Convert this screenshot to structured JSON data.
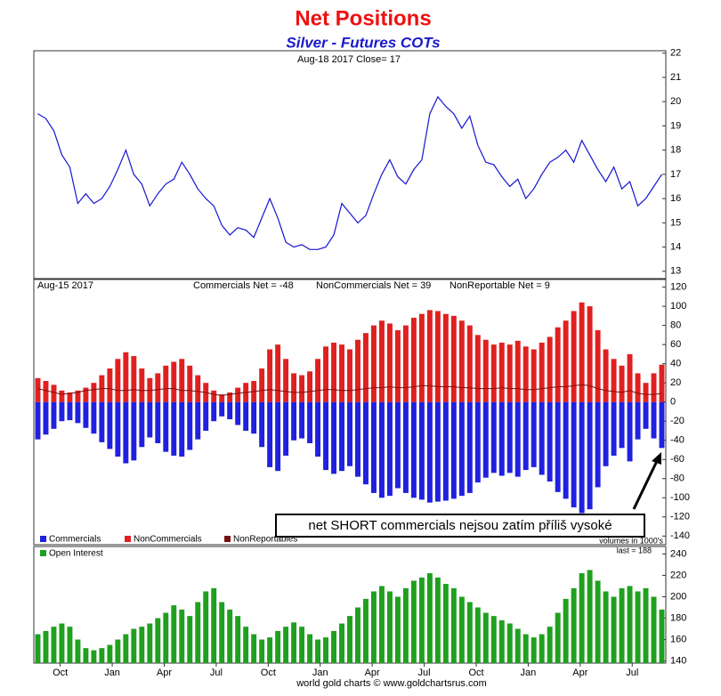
{
  "chart_data": [
    {
      "type": "line",
      "title": "Net Positions",
      "subtitle": "Silver - Futures COTs",
      "note": "Aug-18  2017   Close= 17",
      "xlim": [
        0,
        79
      ],
      "ylim": [
        12.7,
        22.1
      ],
      "yticks": [
        13,
        14,
        15,
        16,
        17,
        18,
        19,
        20,
        21,
        22
      ],
      "grid": false,
      "series": [
        {
          "name": "Silver",
          "color": "#1515d0",
          "values": [
            19.5,
            19.3,
            18.8,
            17.8,
            17.3,
            15.8,
            16.2,
            15.8,
            16.0,
            16.5,
            17.2,
            18.0,
            17.0,
            16.6,
            15.7,
            16.2,
            16.6,
            16.8,
            17.5,
            17.0,
            16.4,
            16.0,
            15.7,
            14.9,
            14.5,
            14.8,
            14.7,
            14.4,
            15.2,
            16.0,
            15.2,
            14.2,
            14.0,
            14.1,
            13.9,
            13.9,
            14.0,
            14.5,
            15.8,
            15.4,
            15.0,
            15.3,
            16.2,
            17.0,
            17.6,
            16.9,
            16.6,
            17.2,
            17.6,
            19.5,
            20.2,
            19.8,
            19.5,
            18.9,
            19.4,
            18.2,
            17.5,
            17.4,
            16.9,
            16.5,
            16.8,
            16.0,
            16.4,
            17.0,
            17.5,
            17.7,
            18.0,
            17.5,
            18.4,
            17.8,
            17.2,
            16.7,
            17.3,
            16.4,
            16.7,
            15.7,
            16.0,
            16.5,
            17.0
          ]
        }
      ]
    },
    {
      "type": "bar",
      "date": "Aug-15  2017",
      "readouts": [
        "Commercials Net = -48",
        "NonCommercials Net = 39",
        "NonReportable Net = 9"
      ],
      "annotation": "net SHORT commercials nejsou zatím příliš vysoké",
      "xlim": [
        0,
        79
      ],
      "ylim": [
        -149,
        128
      ],
      "yticks": [
        120,
        100,
        80,
        60,
        40,
        20,
        0,
        -20,
        -40,
        -60,
        -80,
        -100,
        -120,
        -140
      ],
      "grid": false,
      "series": [
        {
          "name": "Commercials",
          "color": "#2020e0",
          "style": "bar",
          "values": [
            -39,
            -34,
            -28,
            -20,
            -19,
            -22,
            -27,
            -33,
            -42,
            -49,
            -57,
            -64,
            -61,
            -47,
            -37,
            -43,
            -52,
            -56,
            -57,
            -50,
            -39,
            -30,
            -20,
            -15,
            -18,
            -24,
            -30,
            -33,
            -47,
            -68,
            -72,
            -56,
            -40,
            -38,
            -43,
            -57,
            -71,
            -75,
            -72,
            -67,
            -78,
            -86,
            -95,
            -100,
            -98,
            -90,
            -95,
            -100,
            -102,
            -105,
            -104,
            -103,
            -101,
            -98,
            -95,
            -84,
            -79,
            -74,
            -77,
            -74,
            -78,
            -71,
            -68,
            -76,
            -83,
            -94,
            -101,
            -110,
            -116,
            -112,
            -89,
            -67,
            -56,
            -48,
            -62,
            -39,
            -28,
            -38,
            -48
          ]
        },
        {
          "name": "NonCommercials",
          "color": "#e02020",
          "style": "bar",
          "values": [
            25,
            22,
            18,
            12,
            10,
            12,
            15,
            20,
            28,
            35,
            45,
            52,
            48,
            35,
            25,
            30,
            38,
            42,
            45,
            38,
            28,
            20,
            12,
            8,
            10,
            15,
            20,
            22,
            35,
            55,
            60,
            45,
            30,
            28,
            32,
            45,
            58,
            62,
            60,
            55,
            65,
            72,
            80,
            85,
            82,
            75,
            80,
            88,
            92,
            96,
            95,
            92,
            90,
            85,
            80,
            70,
            65,
            60,
            62,
            60,
            64,
            58,
            55,
            62,
            68,
            78,
            85,
            95,
            104,
            100,
            75,
            55,
            45,
            38,
            50,
            30,
            20,
            30,
            39
          ]
        },
        {
          "name": "NonReportables",
          "color": "#7a1010",
          "style": "line",
          "values": [
            14,
            12,
            10,
            8,
            9,
            10,
            12,
            13,
            14,
            14,
            12,
            12,
            13,
            12,
            12,
            13,
            14,
            14,
            12,
            12,
            11,
            10,
            8,
            7,
            8,
            9,
            10,
            11,
            12,
            13,
            12,
            11,
            10,
            10,
            11,
            12,
            13,
            13,
            12,
            12,
            13,
            14,
            15,
            15,
            16,
            15,
            15,
            16,
            17,
            17,
            16,
            16,
            16,
            15,
            15,
            14,
            14,
            14,
            15,
            14,
            14,
            13,
            13,
            14,
            15,
            16,
            16,
            17,
            18,
            17,
            14,
            12,
            11,
            10,
            12,
            9,
            8,
            8,
            9
          ]
        }
      ]
    },
    {
      "type": "bar",
      "unit_note": "volumes in 1000's",
      "last_label": "last = 188",
      "source": "world gold charts © www.goldchartsrus.com",
      "xlim": [
        0,
        79
      ],
      "ylim": [
        138,
        247
      ],
      "yticks": [
        140,
        160,
        180,
        200,
        220,
        240
      ],
      "grid": false,
      "xticks": [
        {
          "value": 3.3,
          "label": "Oct"
        },
        {
          "value": 9.8,
          "label": "Jan"
        },
        {
          "value": 16.3,
          "label": "Apr"
        },
        {
          "value": 22.8,
          "label": "Jul"
        },
        {
          "value": 29.3,
          "label": "Oct"
        },
        {
          "value": 35.8,
          "label": "Jan"
        },
        {
          "value": 42.3,
          "label": "Apr"
        },
        {
          "value": 48.8,
          "label": "Jul"
        },
        {
          "value": 55.3,
          "label": "Oct"
        },
        {
          "value": 61.8,
          "label": "Jan"
        },
        {
          "value": 68.3,
          "label": "Apr"
        },
        {
          "value": 74.8,
          "label": "Jul"
        }
      ],
      "series": [
        {
          "name": "Open Interest",
          "color": "#1fa01f",
          "style": "bar",
          "values": [
            165,
            168,
            172,
            175,
            172,
            160,
            152,
            150,
            152,
            155,
            160,
            165,
            170,
            172,
            175,
            180,
            185,
            192,
            188,
            182,
            195,
            205,
            208,
            195,
            188,
            182,
            172,
            165,
            160,
            162,
            168,
            172,
            176,
            172,
            165,
            160,
            162,
            168,
            175,
            182,
            190,
            198,
            205,
            210,
            205,
            200,
            208,
            215,
            218,
            222,
            218,
            212,
            208,
            200,
            195,
            190,
            185,
            182,
            178,
            175,
            170,
            165,
            162,
            165,
            172,
            185,
            198,
            208,
            222,
            225,
            215,
            205,
            200,
            208,
            210,
            205,
            208,
            200,
            188
          ]
        }
      ]
    }
  ]
}
